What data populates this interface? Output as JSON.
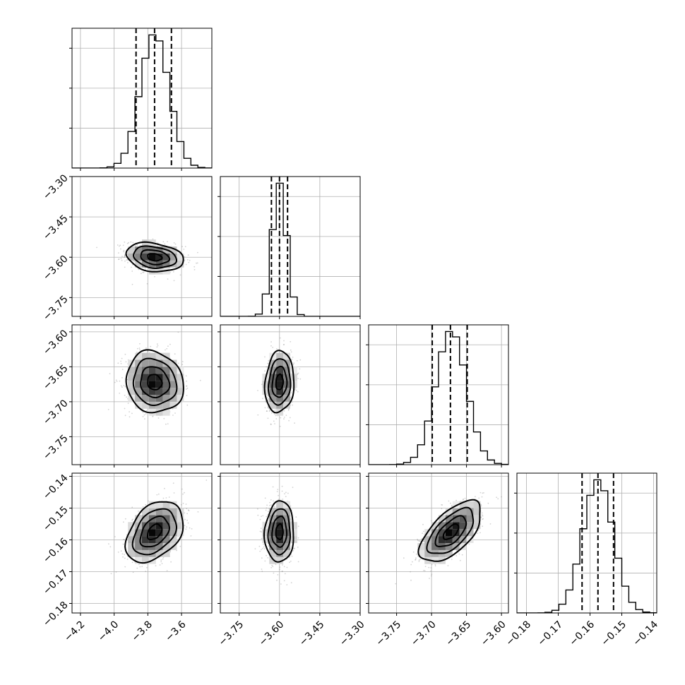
{
  "chart_data": {
    "type": "corner",
    "n_params": 4,
    "colors": {
      "line": "#000000",
      "grid": "#b0b0b0",
      "points": "#808080",
      "density_max": "#000000"
    },
    "grid": true,
    "params": [
      {
        "range": [
          -4.25,
          -3.42
        ],
        "ticks": [
          -4.2,
          -4.0,
          -3.8,
          -3.6
        ],
        "tick_labels": [
          "−4.2",
          "−4.0",
          "−3.8",
          "−3.6"
        ],
        "mean": -3.76,
        "sd": 0.085,
        "quantiles": [
          -3.87,
          -3.76,
          -3.66
        ]
      },
      {
        "range": [
          -3.82,
          -3.3
        ],
        "ticks": [
          -3.75,
          -3.6,
          -3.45,
          -3.3
        ],
        "tick_labels": [
          "−3.75",
          "−3.60",
          "−3.45",
          "−3.30"
        ],
        "mean": -3.6,
        "sd": 0.027,
        "quantiles": [
          -3.63,
          -3.6,
          -3.57
        ]
      },
      {
        "range": [
          -3.79,
          -3.59
        ],
        "ticks": [
          -3.75,
          -3.7,
          -3.65,
          -3.6
        ],
        "tick_labels": [
          "−3.75",
          "−3.70",
          "−3.65",
          "−3.60"
        ],
        "mean": -3.672,
        "sd": 0.022,
        "quantiles": [
          -3.699,
          -3.673,
          -3.649
        ]
      },
      {
        "range": [
          -0.183,
          -0.139
        ],
        "ticks": [
          -0.18,
          -0.17,
          -0.16,
          -0.15,
          -0.14
        ],
        "tick_labels": [
          "−0.18",
          "−0.17",
          "−0.16",
          "−0.15",
          "−0.14"
        ],
        "mean": -0.1575,
        "sd": 0.0048,
        "quantiles": [
          -0.1625,
          -0.1575,
          -0.1526
        ]
      }
    ],
    "correlations": {
      "1,0": -0.22,
      "2,0": -0.1,
      "2,1": 0.1,
      "3,0": 0.38,
      "3,1": 0.05,
      "3,2": 0.62
    },
    "histogram_bins": 20,
    "contour_levels": [
      0.118,
      0.393,
      0.675,
      0.865
    ]
  }
}
